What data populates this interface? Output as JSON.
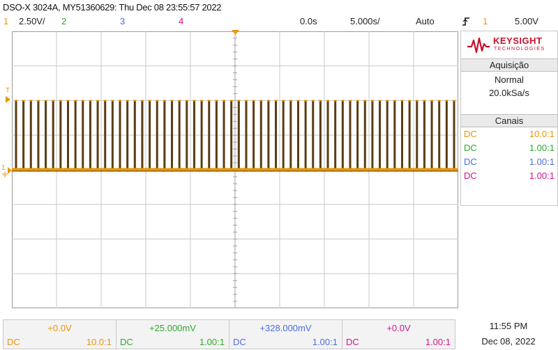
{
  "title": "DSO-X 3024A, MY51360629: Thu Dec 08 23:55:57 2022",
  "header": {
    "ch1_num": "1",
    "ch1_scale": "2.50V/",
    "ch2_num": "2",
    "ch3_num": "3",
    "ch4_num": "4",
    "time_delay": "0.0s",
    "time_scale": "5.000s/",
    "trigger_mode": "Auto",
    "trigger_icon": "rising-edge-icon",
    "trigger_source": "1",
    "trigger_level": "5.00V"
  },
  "colors": {
    "ch1": "#e8960c",
    "ch2": "#2ea82e",
    "ch3": "#4a6ee0",
    "ch4": "#d2128c",
    "trace": "#5a3c14",
    "brand": "#c8102e",
    "grid": "#c8c8c8"
  },
  "graticule_markers": {
    "trigger_level_marker": "T",
    "ch1_ground_marker": "1"
  },
  "brand": {
    "name": "KEYSIGHT",
    "sub": "TECHNOLOGIES"
  },
  "acquisition": {
    "heading": "Aquisição",
    "mode": "Normal",
    "rate": "20.0kSa/s"
  },
  "channels_panel": {
    "heading": "Canais",
    "rows": [
      {
        "coupling": "DC",
        "probe": "10.0:1"
      },
      {
        "coupling": "DC",
        "probe": "1.00:1"
      },
      {
        "coupling": "DC",
        "probe": "1.00:1"
      },
      {
        "coupling": "DC",
        "probe": "1.00:1"
      }
    ]
  },
  "bottom_bar": [
    {
      "offset": "+0.0V",
      "coupling": "DC",
      "probe": "10.0:1"
    },
    {
      "offset": "+25.000mV",
      "coupling": "DC",
      "probe": "1.00:1"
    },
    {
      "offset": "+328.000mV",
      "coupling": "DC",
      "probe": "1.00:1"
    },
    {
      "offset": "+0.0V",
      "coupling": "DC",
      "probe": "1.00:1"
    }
  ],
  "clock": {
    "time": "11:55 PM",
    "date": "Dec 08, 2022"
  },
  "waveform": {
    "grid_divisions": {
      "horizontal": 10,
      "vertical": 8
    },
    "base_level_div": 0,
    "pulse_high_div": 2,
    "pulse_count": 60
  }
}
